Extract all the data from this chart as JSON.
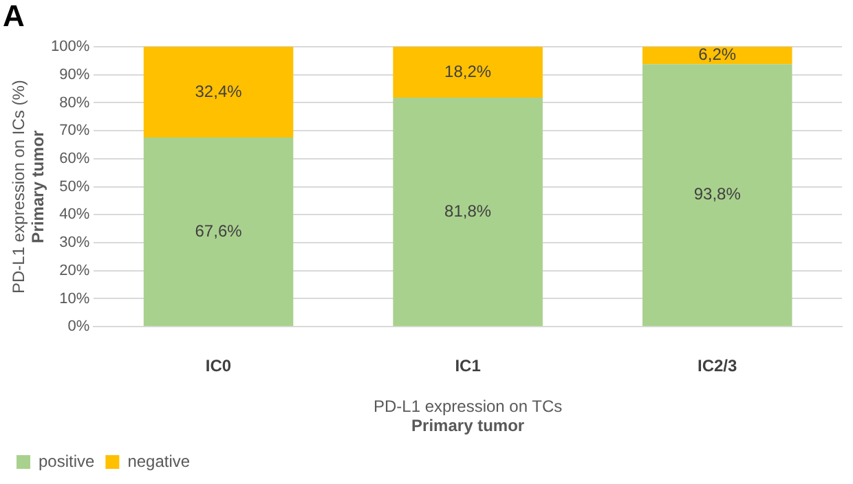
{
  "chart_data": {
    "type": "bar",
    "title": "A",
    "xlabel": "PD-L1 expression on TCs\nPrimary tumor",
    "ylabel": "PD-L1 expression on ICs (%)\nPrimary tumor",
    "categories": [
      "IC0",
      "IC1",
      "IC2/3"
    ],
    "stacked": true,
    "series": [
      {
        "name": "positive",
        "color": "#a9d18e",
        "values": [
          67.6,
          81.8,
          93.8
        ],
        "value_labels": [
          "67,6%",
          "81,8%",
          "93,8%"
        ]
      },
      {
        "name": "negative",
        "color": "#ffc000",
        "values": [
          32.4,
          18.2,
          6.2
        ],
        "value_labels": [
          "32,4%",
          "18,2%",
          "6,2%"
        ]
      }
    ],
    "ylim": [
      0,
      100
    ],
    "yticks": [
      {
        "value": 0,
        "label": "0%"
      },
      {
        "value": 10,
        "label": "10%"
      },
      {
        "value": 20,
        "label": "20%"
      },
      {
        "value": 30,
        "label": "30%"
      },
      {
        "value": 40,
        "label": "40%"
      },
      {
        "value": 50,
        "label": "50%"
      },
      {
        "value": 60,
        "label": "60%"
      },
      {
        "value": 70,
        "label": "70%"
      },
      {
        "value": 80,
        "label": "80%"
      },
      {
        "value": 90,
        "label": "90%"
      },
      {
        "value": 100,
        "label": "100%"
      }
    ],
    "grid": "y",
    "legend": "bottom left"
  }
}
